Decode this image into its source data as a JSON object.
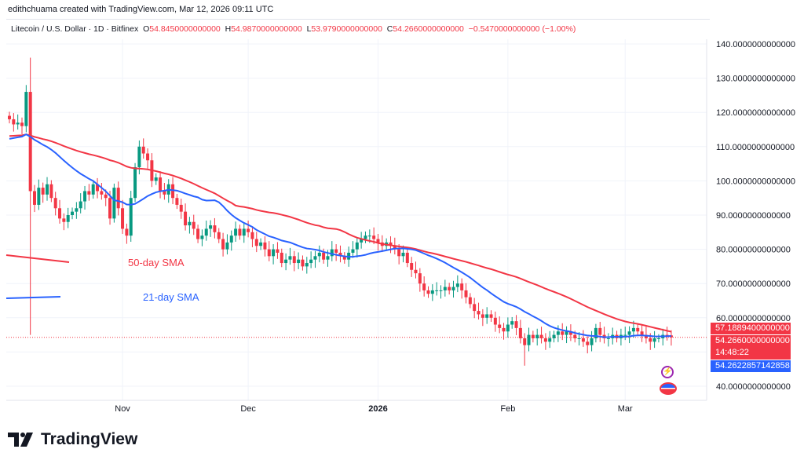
{
  "credit": "edithchuama created with TradingView.com, Mar 12, 2026 09:11 UTC",
  "legend": {
    "symbol": "Litecoin / U.S. Dollar · 1D · Bitfinex",
    "o_label": "O",
    "o": "54.8450000000000",
    "h_label": "H",
    "h": "54.9870000000000",
    "l_label": "L",
    "l": "53.9790000000000",
    "c_label": "C",
    "c": "54.2660000000000",
    "change": "−0.5470000000000 (−1.00%)"
  },
  "price_tags": {
    "sma50": "57.1889400000000",
    "last": "54.2660000000000",
    "countdown": "14:48:22",
    "sma21": "54.2622857142858"
  },
  "annotations": {
    "sma50_label": "50-day SMA",
    "sma21_label": "21-day SMA"
  },
  "logo_text": "TradingView",
  "colors": {
    "up": "#089981",
    "down": "#f23645",
    "sma50": "#f23645",
    "sma21": "#2962ff"
  },
  "chart_data": {
    "type": "candlestick",
    "start_date": "2025-10-05",
    "end_date": "2026-03-12",
    "ylim": [
      35,
      145
    ],
    "yticks": [
      {
        "v": 140,
        "label": "140.0000000000000"
      },
      {
        "v": 130,
        "label": "130.0000000000000"
      },
      {
        "v": 120,
        "label": "120.0000000000000"
      },
      {
        "v": 110,
        "label": "110.0000000000000"
      },
      {
        "v": 100,
        "label": "100.0000000000000"
      },
      {
        "v": 90,
        "label": "90.0000000000000"
      },
      {
        "v": 80,
        "label": "80.0000000000000"
      },
      {
        "v": 70,
        "label": "70.0000000000000"
      },
      {
        "v": 60,
        "label": "60.0000000000000"
      },
      {
        "v": 40,
        "label": "40.0000000000000"
      }
    ],
    "xticks": [
      {
        "date": "2025-11-01",
        "label": "Nov"
      },
      {
        "date": "2025-12-01",
        "label": "Dec"
      },
      {
        "date": "2026-01-01",
        "label": "2026"
      },
      {
        "date": "2026-02-01",
        "label": "Feb"
      },
      {
        "date": "2026-03-01",
        "label": "Mar"
      }
    ],
    "closes": [
      118,
      116.5,
      117,
      116,
      126,
      97,
      93,
      98,
      96,
      99,
      95,
      92,
      89,
      88,
      90,
      91,
      92,
      94,
      97,
      96,
      99,
      97,
      96,
      95,
      89,
      98,
      92,
      86,
      84,
      95,
      104,
      110,
      108,
      106,
      100,
      101,
      97,
      96,
      99,
      95,
      93,
      91,
      87,
      88,
      86,
      83,
      84,
      86,
      87,
      85,
      83,
      80,
      82,
      84,
      86,
      84,
      86,
      85,
      83,
      81,
      82,
      80,
      78,
      80,
      79,
      76,
      77,
      78,
      76,
      77,
      75,
      76,
      77,
      78,
      79,
      77,
      78,
      80,
      79,
      78,
      77,
      79,
      80,
      82,
      83,
      84,
      84,
      83,
      82,
      81,
      82,
      81,
      80,
      78,
      79,
      76,
      74,
      73,
      70,
      68,
      67,
      68,
      68,
      68,
      69,
      68,
      69,
      70,
      68,
      66,
      64,
      62,
      61,
      60,
      61,
      60,
      58,
      57,
      56,
      58,
      59,
      57,
      54,
      52,
      55,
      54,
      55,
      54,
      53,
      54,
      55,
      56,
      55,
      56,
      55,
      54,
      54,
      53,
      52,
      54,
      57,
      55,
      54,
      54,
      55,
      54,
      55,
      55,
      56,
      57,
      56,
      55,
      54,
      53,
      54,
      54,
      55,
      54.845,
      54.266
    ],
    "first_open": 119,
    "extremes": {
      "2025-10-09": {
        "high": 128
      },
      "2025-10-10": {
        "high": 136,
        "low": 55
      },
      "2026-02-05": {
        "low": 46
      }
    },
    "sma50_prior": 113,
    "sma21_prior": 112,
    "last_price": 54.266
  }
}
